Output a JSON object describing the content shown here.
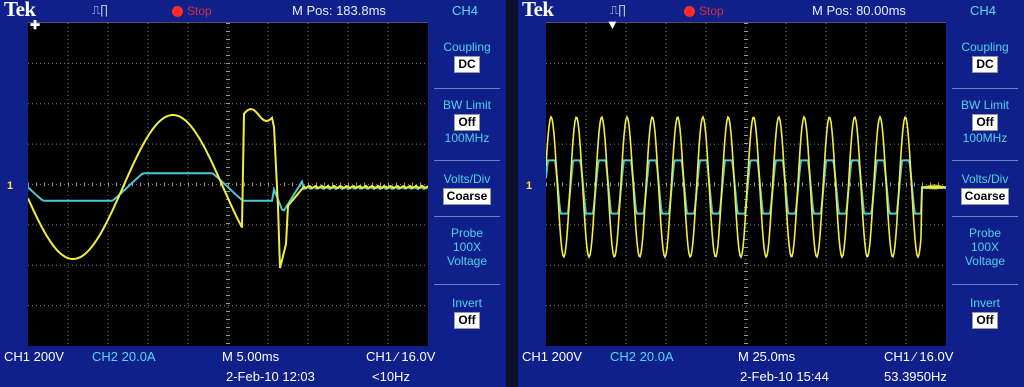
{
  "left": {
    "brand": "Tek",
    "trigger_symbol": "⎍∏",
    "run_state": "Stop",
    "mpos": "M Pos: 183.8ms",
    "channel": "CH4",
    "menu": {
      "coupling_label": "Coupling",
      "coupling_value": "DC",
      "bw_label": "BW Limit",
      "bw_value": "Off",
      "bw_sub": "100MHz",
      "vdiv_label": "Volts/Div",
      "vdiv_value": "Coarse",
      "probe_label": "Probe",
      "probe_atten": "100X",
      "probe_type": "Voltage",
      "invert_label": "Invert",
      "invert_value": "Off"
    },
    "status": {
      "ch1": "CH1  200V",
      "ch2": "CH2  20.0A",
      "timebase": "M 5.00ms",
      "trigger": "CH1 ∕ 16.0V",
      "date": "2-Feb-10 12:03",
      "freq": "<10Hz"
    },
    "marker": "1"
  },
  "right": {
    "brand": "Tek",
    "trigger_symbol": "⎍∏",
    "run_state": "Stop",
    "mpos": "M Pos: 80.00ms",
    "channel": "CH4",
    "menu": {
      "coupling_label": "Coupling",
      "coupling_value": "DC",
      "bw_label": "BW Limit",
      "bw_value": "Off",
      "bw_sub": "100MHz",
      "vdiv_label": "Volts/Div",
      "vdiv_value": "Coarse",
      "probe_label": "Probe",
      "probe_atten": "100X",
      "probe_type": "Voltage",
      "invert_label": "Invert",
      "invert_value": "Off"
    },
    "status": {
      "ch1": "CH1  200V",
      "ch2": "CH2  20.0A",
      "timebase": "M 25.0ms",
      "trigger": "CH1 ∕ 16.0V",
      "date": "2-Feb-10 15:44",
      "freq": "53.3950Hz"
    },
    "marker": "1"
  },
  "colors": {
    "bezel": "#10208a",
    "ch1_trace": "#f2ee40",
    "ch2_trace": "#4ec8d8",
    "grid": "#8a8a8a",
    "menu_text": "#4fd2ec"
  }
}
